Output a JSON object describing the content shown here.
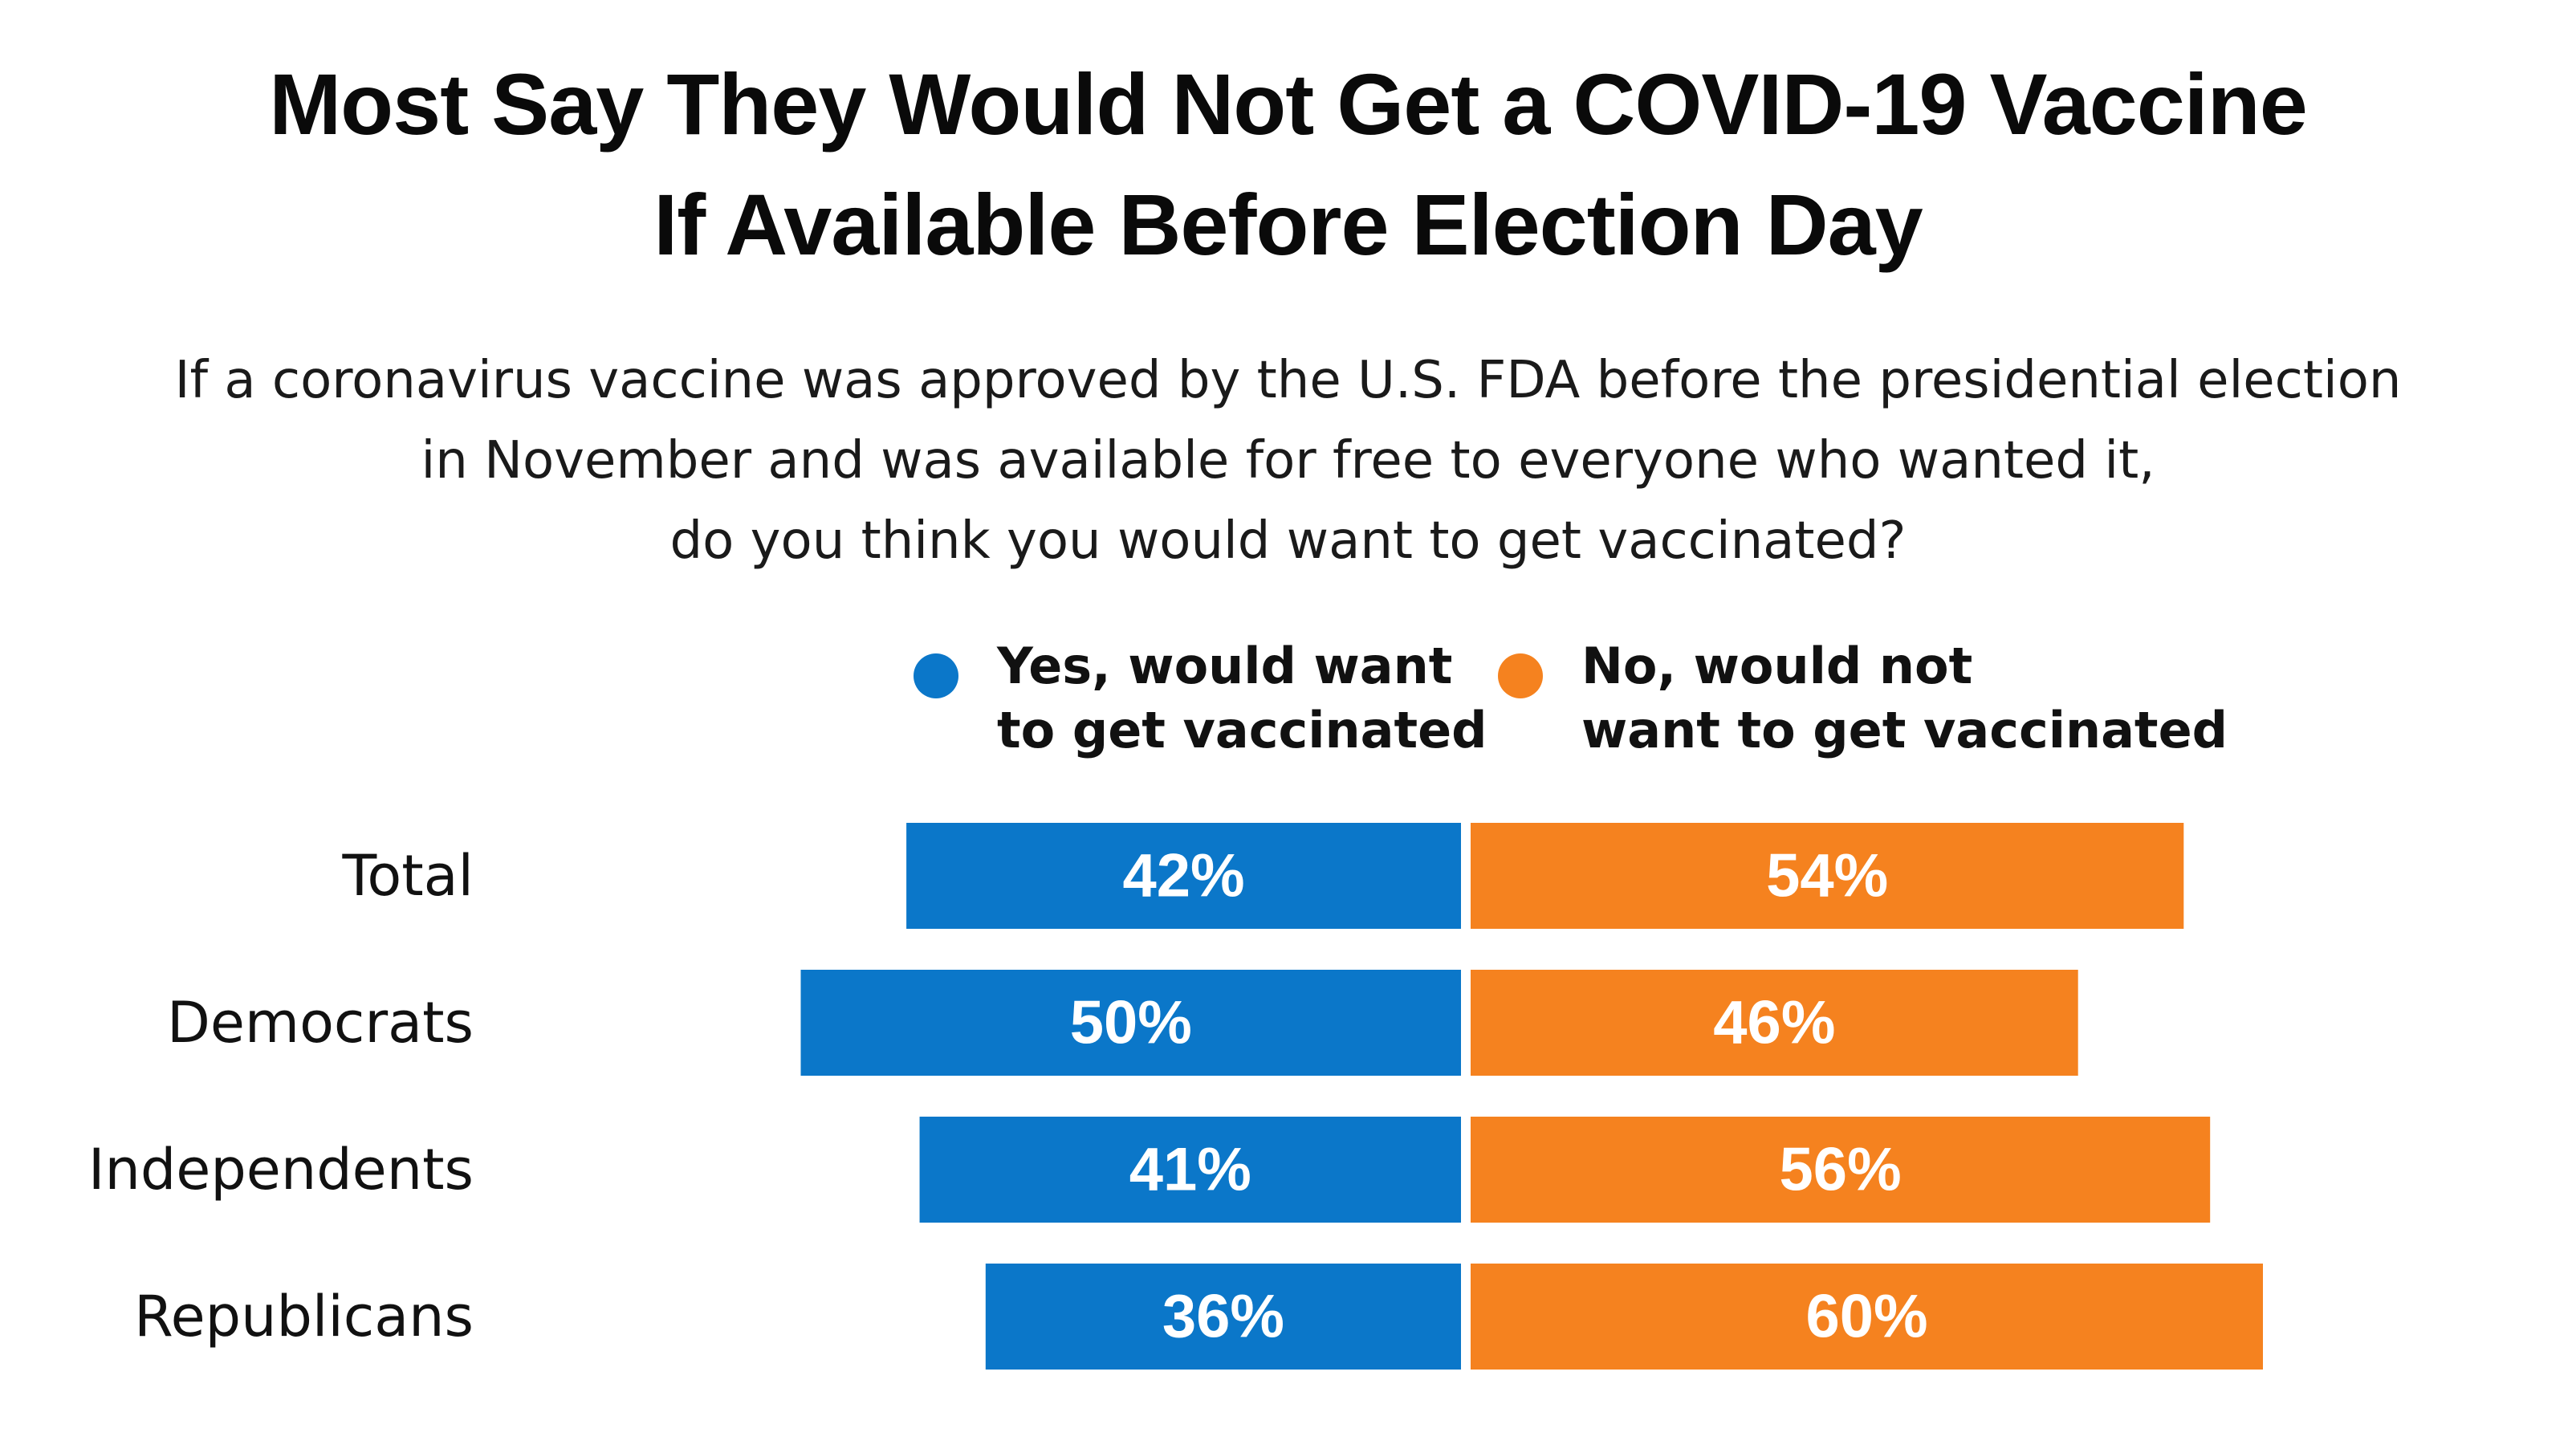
{
  "title_lines": [
    "Most Say They Would Not Get a COVID-19 Vaccine",
    "If Available Before Election Day"
  ],
  "subtitle_lines": [
    "If a coronavirus vaccine was approved by the U.S. FDA before the presidential election",
    "in November and was available for free to everyone who wanted it,",
    "do you think you would want to get vaccinated?"
  ],
  "legend": {
    "yes_label": "Yes, would want\nto get vaccinated",
    "no_label": "No, would not\nwant to get vaccinated"
  },
  "colors": {
    "yes": "#0b77c9",
    "no": "#f5821f"
  },
  "chart_data": {
    "type": "bar",
    "orientation": "horizontal-diverging",
    "categories": [
      "Total",
      "Democrats",
      "Independents",
      "Republicans"
    ],
    "series": [
      {
        "name": "Yes, would want to get vaccinated",
        "values": [
          42,
          50,
          41,
          36
        ],
        "labels": [
          "42%",
          "50%",
          "41%",
          "36%"
        ]
      },
      {
        "name": "No, would not want to get vaccinated",
        "values": [
          54,
          46,
          56,
          60
        ],
        "labels": [
          "54%",
          "46%",
          "56%",
          "60%"
        ]
      }
    ],
    "unit": "%",
    "legend_position": "top"
  }
}
